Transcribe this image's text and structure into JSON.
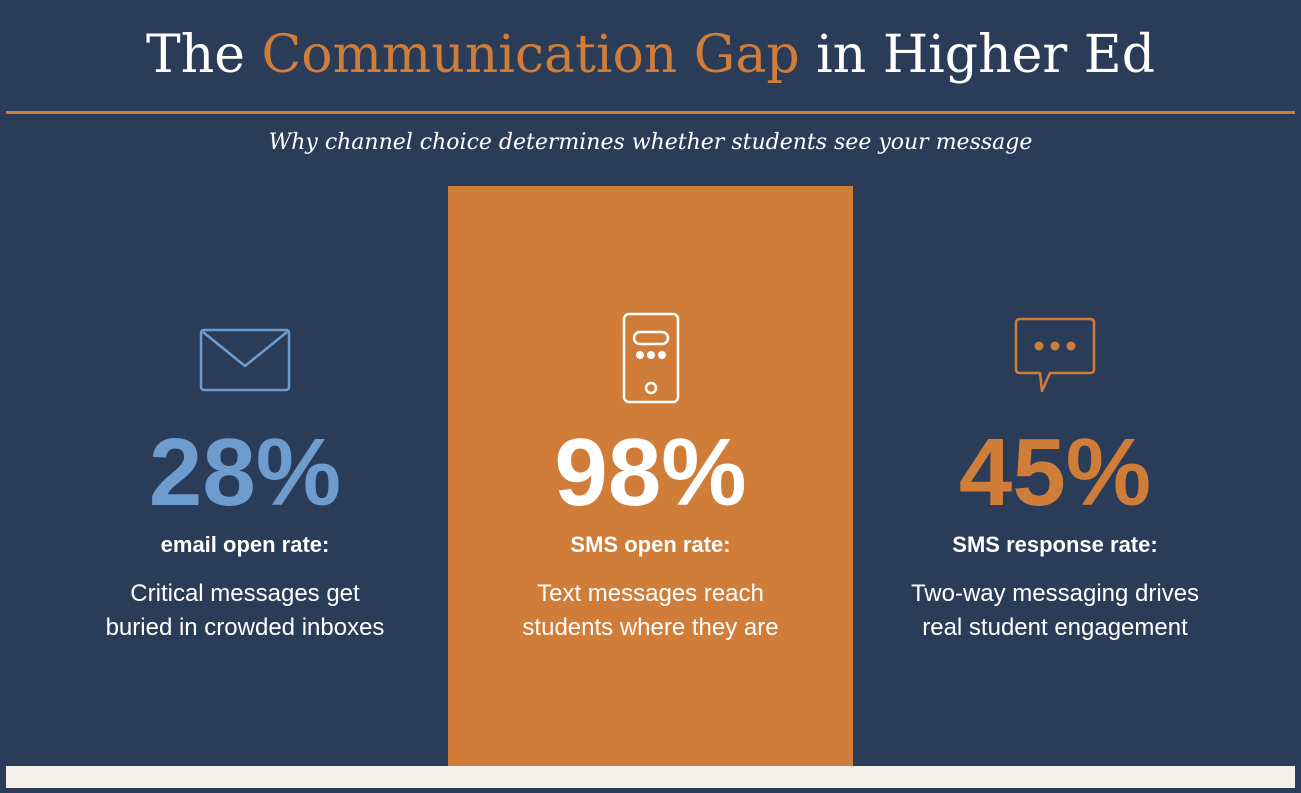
{
  "header": {
    "title_prefix": "The",
    "title_accent": "Communication Gap",
    "title_suffix": "in Higher Ed",
    "subtitle": "Why channel choice determines whether students see your message"
  },
  "stats": [
    {
      "icon": "email-icon",
      "value": "28%",
      "label": "email open rate:",
      "desc_line1": "Critical messages get",
      "desc_line2": "buried in crowded inboxes",
      "value_color": "#6f9ccf"
    },
    {
      "icon": "phone-icon",
      "value": "98%",
      "label": "SMS open rate:",
      "desc_line1": "Text messages reach",
      "desc_line2": "students where they are",
      "value_color": "#ffffff"
    },
    {
      "icon": "chat-bubble-icon",
      "value": "45%",
      "label": "SMS response rate:",
      "desc_line1": "Two-way messaging drives",
      "desc_line2": "real student engagement",
      "value_color": "#d17d3a"
    }
  ],
  "colors": {
    "background": "#2a3c58",
    "accent": "#d17d3a",
    "email_blue": "#6f9ccf",
    "footer": "#f3f0ea"
  }
}
